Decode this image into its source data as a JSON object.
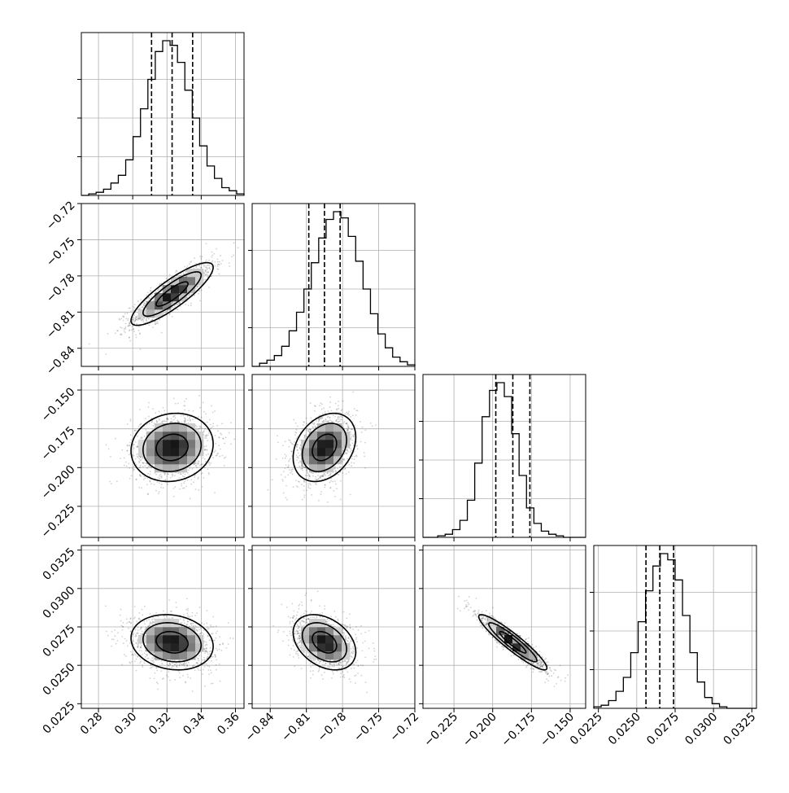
{
  "chart_data": {
    "type": "corner",
    "grid": true,
    "ranges": [
      [
        0.27,
        0.365
      ],
      [
        -0.855,
        -0.72
      ],
      [
        -0.245,
        -0.14
      ],
      [
        0.0222,
        0.0328
      ]
    ],
    "ticks": [
      {
        "values": [
          0.28,
          0.3,
          0.32,
          0.34,
          0.36
        ],
        "labels": [
          "0.28",
          "0.30",
          "0.32",
          "0.34",
          "0.36"
        ]
      },
      {
        "values": [
          -0.84,
          -0.81,
          -0.78,
          -0.75,
          -0.72
        ],
        "labels": [
          "−0.84",
          "−0.81",
          "−0.78",
          "−0.75",
          "−0.72"
        ]
      },
      {
        "values": [
          -0.225,
          -0.2,
          -0.175,
          -0.15
        ],
        "labels": [
          "−0.225",
          "−0.200",
          "−0.175",
          "−0.150"
        ]
      },
      {
        "values": [
          0.0225,
          0.025,
          0.0275,
          0.03,
          0.0325
        ],
        "labels": [
          "0.0225",
          "0.0250",
          "0.0275",
          "0.0300",
          "0.0325"
        ]
      }
    ],
    "quantiles": [
      [
        0.311,
        0.323,
        0.335
      ],
      [
        -0.808,
        -0.795,
        -0.782
      ],
      [
        -0.198,
        -0.187,
        -0.176
      ],
      [
        0.0256,
        0.0265,
        0.0274
      ]
    ],
    "histograms": [
      {
        "bins": [
          0.27,
          0.365
        ],
        "counts": [
          0,
          1,
          2,
          4,
          8,
          13,
          23,
          38,
          56,
          75,
          93,
          100,
          97,
          86,
          68,
          50,
          32,
          19,
          11,
          5,
          3,
          1
        ]
      },
      {
        "bins": [
          -0.855,
          -0.72
        ],
        "counts": [
          0,
          2,
          4,
          7,
          13,
          23,
          35,
          50,
          67,
          83,
          95,
          100,
          96,
          84,
          68,
          50,
          34,
          21,
          12,
          6,
          3,
          1
        ]
      },
      {
        "bins": [
          -0.245,
          -0.14
        ],
        "counts": [
          0,
          0,
          1,
          2,
          5,
          11,
          24,
          48,
          78,
          95,
          100,
          91,
          67,
          40,
          19,
          9,
          4,
          2,
          1,
          0,
          0,
          0
        ]
      },
      {
        "bins": [
          0.0222,
          0.0328
        ],
        "counts": [
          1,
          2,
          5,
          11,
          20,
          36,
          56,
          76,
          92,
          100,
          96,
          83,
          60,
          36,
          17,
          7,
          3,
          1,
          0,
          0,
          0,
          0
        ]
      }
    ],
    "pairs": [
      {
        "x": 0,
        "y": 1,
        "center": [
          0.323,
          -0.795
        ],
        "sd": [
          0.012,
          0.013
        ],
        "rho": 0.85
      },
      {
        "x": 0,
        "y": 2,
        "center": [
          0.323,
          -0.187
        ],
        "sd": [
          0.012,
          0.011
        ],
        "rho": 0.1
      },
      {
        "x": 1,
        "y": 2,
        "center": [
          -0.795,
          -0.187
        ],
        "sd": [
          0.013,
          0.011
        ],
        "rho": 0.3
      },
      {
        "x": 0,
        "y": 3,
        "center": [
          0.323,
          0.0265
        ],
        "sd": [
          0.012,
          0.0009
        ],
        "rho": -0.15
      },
      {
        "x": 1,
        "y": 3,
        "center": [
          -0.795,
          0.0265
        ],
        "sd": [
          0.013,
          0.0009
        ],
        "rho": -0.35
      },
      {
        "x": 2,
        "y": 3,
        "center": [
          -0.187,
          0.0265
        ],
        "sd": [
          0.011,
          0.0009
        ],
        "rho": -0.93
      }
    ]
  }
}
